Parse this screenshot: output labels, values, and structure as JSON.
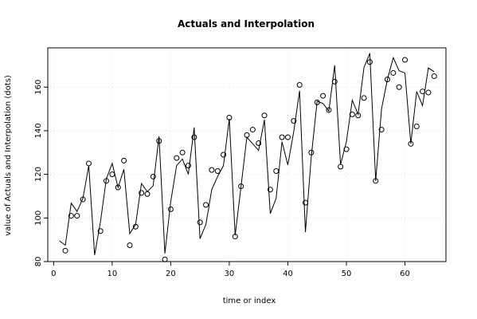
{
  "chart_data": {
    "type": "line",
    "title": "Actuals and Interpolation",
    "xlabel": "time or index",
    "ylabel": "value of Actuals and Interpolation (dots)",
    "xlim": [
      -1,
      67
    ],
    "ylim": [
      80,
      178
    ],
    "x_ticks": [
      0,
      10,
      20,
      30,
      40,
      50,
      60
    ],
    "y_ticks": [
      80,
      100,
      120,
      140,
      160
    ],
    "grid": true,
    "legend": "none",
    "series": [
      {
        "style": "line",
        "color": "#000000",
        "x": [
          1,
          2,
          3,
          4,
          5,
          6,
          7,
          8,
          9,
          10,
          11,
          12,
          13,
          14,
          15,
          16,
          17,
          18,
          19,
          20,
          21,
          22,
          23,
          24,
          25,
          26,
          27,
          28,
          29,
          30,
          31,
          32,
          33,
          34,
          35,
          36,
          37,
          38,
          39,
          40,
          41,
          42,
          43,
          44,
          45,
          46,
          47,
          48,
          49,
          50,
          51,
          52,
          53,
          54,
          55,
          56,
          57,
          58,
          59,
          60,
          61,
          62,
          63,
          64,
          65
        ],
        "values": [
          89.5,
          87.5,
          106.8,
          103,
          109,
          124,
          83,
          98.3,
          118,
          125,
          114,
          122.3,
          92.8,
          97,
          115.8,
          112,
          114.8,
          137.5,
          83.7,
          107.5,
          124,
          127,
          120,
          141.5,
          90.5,
          97,
          113,
          119,
          124,
          145.5,
          92,
          114.3,
          137,
          134,
          131,
          145,
          102,
          109,
          135,
          124.3,
          139.5,
          158.3,
          93.5,
          128,
          153.5,
          152.5,
          149,
          170,
          124.5,
          135,
          154,
          147.5,
          169,
          175.5,
          117,
          150,
          163.5,
          173.5,
          167.5,
          166.5,
          134,
          158,
          151.5,
          168.8,
          167
        ]
      },
      {
        "style": "points",
        "color": "#000000",
        "x": [
          1,
          2,
          3,
          4,
          5,
          6,
          7,
          8,
          9,
          10,
          11,
          12,
          13,
          14,
          15,
          16,
          17,
          18,
          19,
          20,
          21,
          22,
          23,
          24,
          25,
          26,
          27,
          28,
          29,
          30,
          31,
          32,
          33,
          34,
          35,
          36,
          37,
          38,
          39,
          40,
          41,
          42,
          43,
          44,
          45,
          46,
          47,
          48,
          49,
          50,
          51,
          52,
          53,
          54,
          55,
          56,
          57,
          58,
          59,
          60,
          61,
          62,
          63,
          64,
          65
        ],
        "values": [
          null,
          85,
          101,
          101,
          108.5,
          125,
          null,
          94,
          117,
          120,
          114,
          126.3,
          87.5,
          96,
          111.5,
          111,
          119,
          135.3,
          81,
          104,
          127.5,
          130,
          124,
          137,
          98,
          106,
          122,
          121.5,
          129,
          146,
          91.5,
          114.5,
          138,
          140.5,
          134.3,
          147,
          113,
          121.5,
          137,
          137,
          144.5,
          161,
          107,
          130,
          153,
          156,
          149.5,
          162.5,
          123.5,
          131.5,
          147.5,
          147,
          155,
          171.5,
          117,
          140.5,
          163.5,
          166.5,
          160,
          172.5,
          134,
          142,
          158,
          157.5,
          165
        ]
      }
    ]
  }
}
